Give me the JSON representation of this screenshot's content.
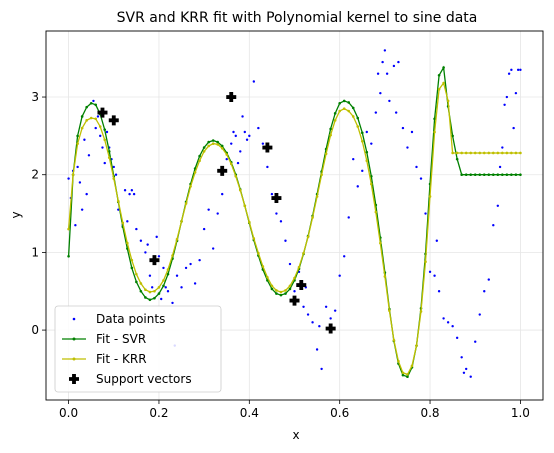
{
  "chart_data": {
    "type": "scatter",
    "title": "SVR and KRR fit with Polynomial kernel to sine data",
    "xlabel": "x",
    "ylabel": "y",
    "xlim": [
      -0.05,
      1.05
    ],
    "ylim": [
      -0.9,
      3.85
    ],
    "xticks": [
      0.0,
      0.2,
      0.4,
      0.6,
      0.8,
      1.0
    ],
    "xtick_labels": [
      "0.0",
      "0.2",
      "0.4",
      "0.6",
      "0.8",
      "1.0"
    ],
    "yticks": [
      0,
      1,
      2,
      3
    ],
    "ytick_labels": [
      "0",
      "1",
      "2",
      "3"
    ],
    "grid": true,
    "legend_position": "lower-left",
    "colors": {
      "data_points": "#0000ff",
      "svr": "#008000",
      "krr": "#bfbf00",
      "support": "#000000",
      "grid": "#e6e6e6"
    },
    "series": [
      {
        "name": "Data points",
        "kind": "scatter",
        "x": [
          0.0,
          0.005,
          0.01,
          0.015,
          0.02,
          0.025,
          0.03,
          0.035,
          0.04,
          0.045,
          0.055,
          0.06,
          0.065,
          0.07,
          0.075,
          0.08,
          0.085,
          0.09,
          0.095,
          0.1,
          0.105,
          0.11,
          0.12,
          0.125,
          0.13,
          0.135,
          0.14,
          0.145,
          0.15,
          0.16,
          0.17,
          0.175,
          0.18,
          0.185,
          0.195,
          0.2,
          0.205,
          0.21,
          0.215,
          0.22,
          0.23,
          0.235,
          0.24,
          0.25,
          0.26,
          0.27,
          0.28,
          0.29,
          0.3,
          0.31,
          0.32,
          0.33,
          0.34,
          0.35,
          0.36,
          0.365,
          0.37,
          0.375,
          0.38,
          0.385,
          0.39,
          0.395,
          0.4,
          0.41,
          0.42,
          0.43,
          0.44,
          0.45,
          0.46,
          0.47,
          0.48,
          0.49,
          0.5,
          0.51,
          0.52,
          0.525,
          0.53,
          0.54,
          0.55,
          0.555,
          0.56,
          0.57,
          0.58,
          0.59,
          0.6,
          0.61,
          0.62,
          0.63,
          0.64,
          0.65,
          0.66,
          0.67,
          0.68,
          0.685,
          0.69,
          0.695,
          0.7,
          0.705,
          0.71,
          0.72,
          0.725,
          0.73,
          0.74,
          0.75,
          0.76,
          0.77,
          0.78,
          0.79,
          0.8,
          0.81,
          0.815,
          0.82,
          0.83,
          0.84,
          0.85,
          0.86,
          0.87,
          0.875,
          0.88,
          0.89,
          0.9,
          0.91,
          0.92,
          0.93,
          0.94,
          0.95,
          0.955,
          0.96,
          0.965,
          0.97,
          0.975,
          0.98,
          0.985,
          0.99,
          0.995,
          1.0
        ],
        "y": [
          1.95,
          1.7,
          2.05,
          1.35,
          2.1,
          1.9,
          1.55,
          2.45,
          1.75,
          2.25,
          2.95,
          2.6,
          2.75,
          2.5,
          2.35,
          2.15,
          2.55,
          2.35,
          2.2,
          2.1,
          2.0,
          1.55,
          1.35,
          1.8,
          1.4,
          1.75,
          1.8,
          1.75,
          1.3,
          1.15,
          1.0,
          1.1,
          0.7,
          0.55,
          1.2,
          0.95,
          0.4,
          0.8,
          0.55,
          0.5,
          0.35,
          -0.2,
          0.7,
          0.55,
          0.8,
          0.85,
          0.6,
          0.9,
          1.3,
          1.55,
          1.05,
          1.5,
          1.75,
          2.2,
          2.4,
          2.55,
          2.5,
          2.15,
          2.3,
          2.75,
          2.55,
          2.45,
          2.5,
          3.2,
          2.6,
          2.4,
          2.1,
          1.75,
          1.5,
          1.4,
          1.15,
          0.85,
          0.5,
          0.75,
          0.3,
          0.55,
          0.2,
          0.1,
          -0.25,
          0.05,
          -0.5,
          0.3,
          0.15,
          0.25,
          0.7,
          0.95,
          1.45,
          2.2,
          1.85,
          2.05,
          2.55,
          2.4,
          2.8,
          3.3,
          3.05,
          3.45,
          3.6,
          3.3,
          2.95,
          3.4,
          2.8,
          3.45,
          2.6,
          2.35,
          2.55,
          2.1,
          1.95,
          1.5,
          0.75,
          0.7,
          1.15,
          0.5,
          0.15,
          0.1,
          0.05,
          -0.1,
          -0.35,
          -0.55,
          -0.5,
          -0.6,
          -0.15,
          0.2,
          0.5,
          0.65,
          1.35,
          1.6,
          2.1,
          2.35,
          2.9,
          3.0,
          3.3,
          3.35,
          2.6,
          3.05,
          3.35,
          3.35
        ]
      },
      {
        "name": "Fit - SVR",
        "kind": "line",
        "x": [
          0.0,
          0.01,
          0.02,
          0.03,
          0.04,
          0.05,
          0.06,
          0.07,
          0.08,
          0.09,
          0.1,
          0.11,
          0.12,
          0.13,
          0.14,
          0.15,
          0.16,
          0.17,
          0.18,
          0.19,
          0.2,
          0.21,
          0.22,
          0.23,
          0.24,
          0.25,
          0.26,
          0.27,
          0.28,
          0.29,
          0.3,
          0.31,
          0.32,
          0.33,
          0.34,
          0.35,
          0.36,
          0.37,
          0.38,
          0.39,
          0.4,
          0.41,
          0.42,
          0.43,
          0.44,
          0.45,
          0.46,
          0.47,
          0.48,
          0.49,
          0.5,
          0.51,
          0.52,
          0.53,
          0.54,
          0.55,
          0.56,
          0.57,
          0.58,
          0.59,
          0.6,
          0.61,
          0.62,
          0.63,
          0.64,
          0.65,
          0.66,
          0.67,
          0.68,
          0.69,
          0.7,
          0.71,
          0.72,
          0.73,
          0.74,
          0.75,
          0.76,
          0.77,
          0.78,
          0.79,
          0.8,
          0.81,
          0.82,
          0.83,
          0.84,
          0.85,
          0.86,
          0.87,
          0.88,
          0.89,
          0.9,
          0.91,
          0.92,
          0.93,
          0.94,
          0.95,
          0.96,
          0.97,
          0.98,
          0.99,
          1.0
        ],
        "y": [
          0.95,
          2.0,
          2.5,
          2.75,
          2.87,
          2.92,
          2.9,
          2.78,
          2.58,
          2.3,
          1.98,
          1.65,
          1.33,
          1.05,
          0.8,
          0.62,
          0.5,
          0.42,
          0.39,
          0.41,
          0.47,
          0.57,
          0.72,
          0.92,
          1.15,
          1.4,
          1.65,
          1.88,
          2.08,
          2.24,
          2.35,
          2.42,
          2.44,
          2.42,
          2.37,
          2.28,
          2.16,
          2.0,
          1.81,
          1.6,
          1.38,
          1.16,
          0.96,
          0.78,
          0.64,
          0.53,
          0.47,
          0.45,
          0.47,
          0.53,
          0.64,
          0.79,
          0.98,
          1.21,
          1.47,
          1.75,
          2.04,
          2.33,
          2.59,
          2.79,
          2.92,
          2.95,
          2.93,
          2.86,
          2.73,
          2.54,
          2.29,
          1.98,
          1.61,
          1.19,
          0.74,
          0.27,
          -0.14,
          -0.43,
          -0.58,
          -0.6,
          -0.48,
          -0.2,
          0.28,
          0.98,
          1.88,
          2.72,
          3.28,
          3.38,
          2.88,
          2.5,
          2.2,
          2.0,
          2.0,
          2.0,
          2.0,
          2.0,
          2.0,
          2.0,
          2.0,
          2.0,
          2.0,
          2.0,
          2.0,
          2.0,
          2.0
        ]
      },
      {
        "name": "Fit - KRR",
        "kind": "line",
        "x": [
          0.0,
          0.01,
          0.02,
          0.03,
          0.04,
          0.05,
          0.06,
          0.07,
          0.08,
          0.09,
          0.1,
          0.11,
          0.12,
          0.13,
          0.14,
          0.15,
          0.16,
          0.17,
          0.18,
          0.19,
          0.2,
          0.21,
          0.22,
          0.23,
          0.24,
          0.25,
          0.26,
          0.27,
          0.28,
          0.29,
          0.3,
          0.31,
          0.32,
          0.33,
          0.34,
          0.35,
          0.36,
          0.37,
          0.38,
          0.39,
          0.4,
          0.41,
          0.42,
          0.43,
          0.44,
          0.45,
          0.46,
          0.47,
          0.48,
          0.49,
          0.5,
          0.51,
          0.52,
          0.53,
          0.54,
          0.55,
          0.56,
          0.57,
          0.58,
          0.59,
          0.6,
          0.61,
          0.62,
          0.63,
          0.64,
          0.65,
          0.66,
          0.67,
          0.68,
          0.69,
          0.7,
          0.71,
          0.72,
          0.73,
          0.74,
          0.75,
          0.76,
          0.77,
          0.78,
          0.79,
          0.8,
          0.81,
          0.82,
          0.83,
          0.84,
          0.85,
          0.86,
          0.87,
          0.88,
          0.89,
          0.9,
          0.91,
          0.92,
          0.93,
          0.94,
          0.95,
          0.96,
          0.97,
          0.98,
          0.99,
          1.0
        ],
        "y": [
          1.3,
          2.0,
          2.4,
          2.6,
          2.7,
          2.73,
          2.72,
          2.62,
          2.45,
          2.22,
          1.95,
          1.66,
          1.38,
          1.12,
          0.9,
          0.72,
          0.6,
          0.52,
          0.49,
          0.5,
          0.55,
          0.64,
          0.78,
          0.96,
          1.17,
          1.4,
          1.63,
          1.85,
          2.03,
          2.18,
          2.3,
          2.37,
          2.4,
          2.39,
          2.34,
          2.26,
          2.14,
          1.98,
          1.8,
          1.6,
          1.39,
          1.18,
          0.99,
          0.82,
          0.68,
          0.57,
          0.51,
          0.49,
          0.51,
          0.57,
          0.67,
          0.81,
          0.99,
          1.2,
          1.45,
          1.72,
          2.0,
          2.27,
          2.51,
          2.7,
          2.82,
          2.85,
          2.82,
          2.75,
          2.62,
          2.43,
          2.18,
          1.88,
          1.52,
          1.12,
          0.69,
          0.25,
          -0.13,
          -0.4,
          -0.55,
          -0.57,
          -0.46,
          -0.2,
          0.24,
          0.88,
          1.72,
          2.55,
          3.1,
          3.18,
          2.95,
          2.28,
          2.28,
          2.28,
          2.28,
          2.28,
          2.28,
          2.28,
          2.28,
          2.28,
          2.28,
          2.28,
          2.28,
          2.28,
          2.28,
          2.28,
          2.28
        ]
      },
      {
        "name": "Support vectors",
        "kind": "scatter",
        "x": [
          0.075,
          0.1,
          0.19,
          0.34,
          0.36,
          0.44,
          0.46,
          0.5,
          0.515,
          0.58
        ],
        "y": [
          2.8,
          2.7,
          0.9,
          2.05,
          3.0,
          2.35,
          1.7,
          0.38,
          0.58,
          0.02
        ]
      }
    ]
  }
}
